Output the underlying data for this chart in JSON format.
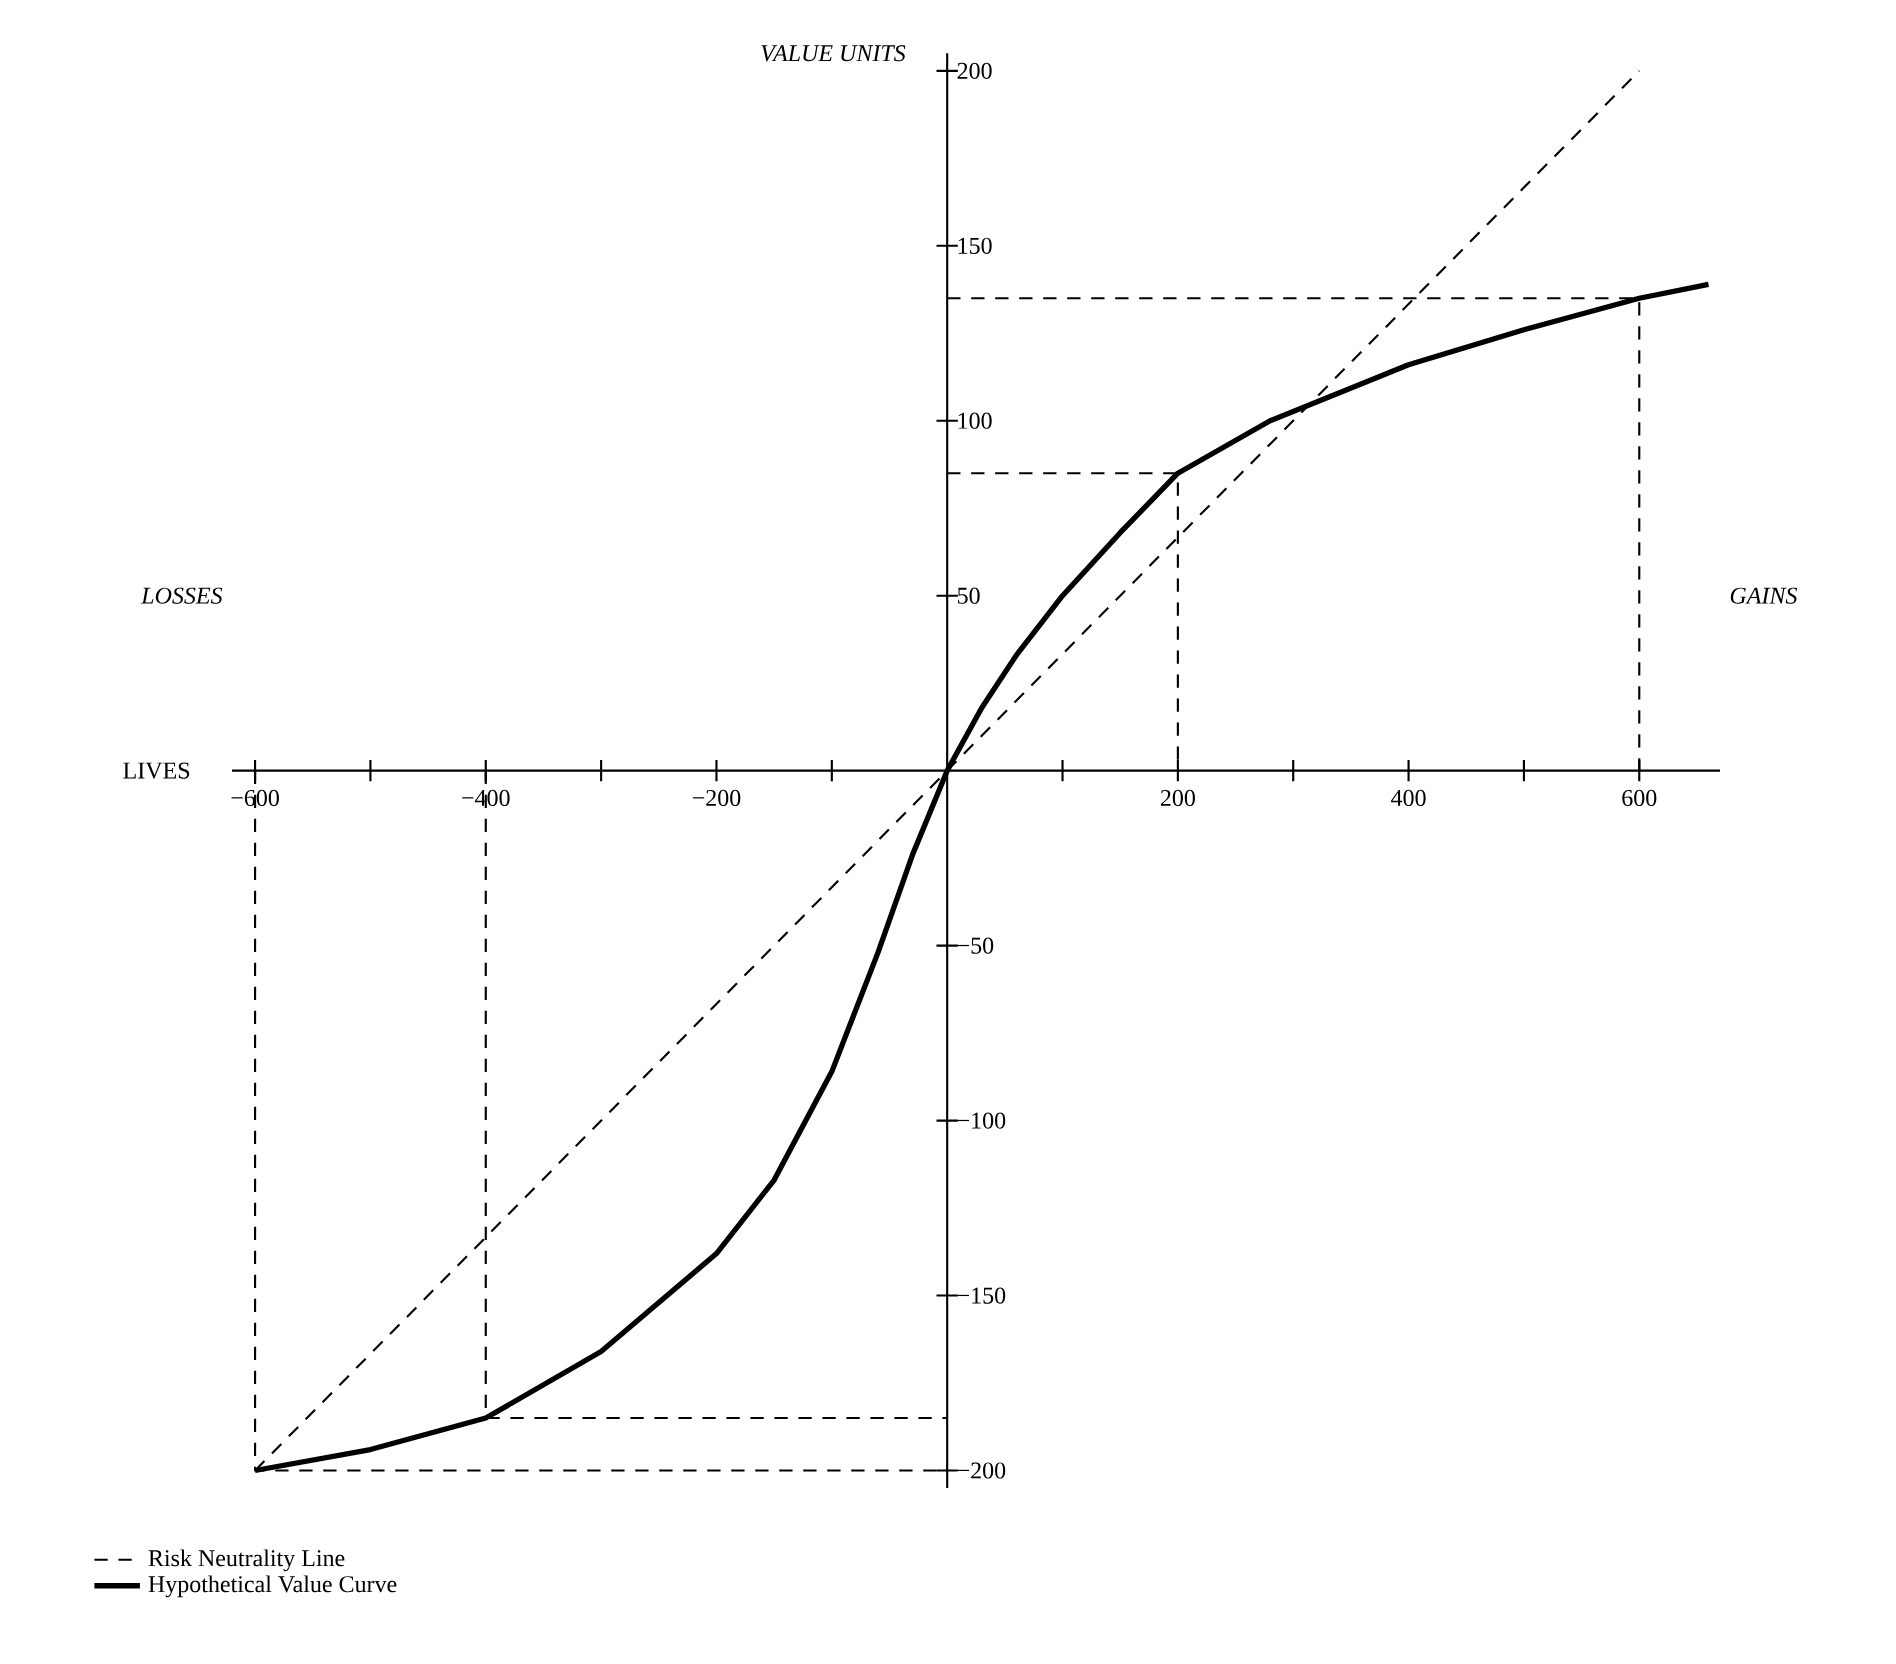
{
  "chart_data": {
    "type": "line",
    "xlabel": "LIVES",
    "ylabel": "VALUE UNITS",
    "annotations": [
      "LOSSES",
      "GAINS"
    ],
    "xlim": [
      -620,
      670
    ],
    "ylim": [
      -205,
      205
    ],
    "xticks": [
      {
        "value": -600,
        "label": "−600"
      },
      {
        "value": -500,
        "label": null
      },
      {
        "value": -400,
        "label": "−400"
      },
      {
        "value": -300,
        "label": null
      },
      {
        "value": -200,
        "label": "−200"
      },
      {
        "value": -100,
        "label": null
      },
      {
        "value": 100,
        "label": null
      },
      200,
      {
        "value": 300,
        "label": null
      },
      400,
      {
        "value": 500,
        "label": null
      },
      600
    ],
    "yticks": [
      {
        "value": -200,
        "label": "−200"
      },
      {
        "value": -150,
        "label": "−150"
      },
      {
        "value": -100,
        "label": "−100"
      },
      {
        "value": -50,
        "label": "−50"
      },
      50,
      100,
      150,
      200
    ],
    "legend": "bottom left",
    "marker": "none",
    "series": [
      {
        "name": "Risk Neutrality Line",
        "line_style": "dashed",
        "color": "#000000",
        "x": [
          -600,
          600
        ],
        "values": [
          -200,
          200
        ]
      },
      {
        "name": "Hypothetical Value Curve",
        "line_style": "solid",
        "color": "#000000",
        "x": [
          -600,
          -500,
          -400,
          -300,
          -200,
          -150,
          -100,
          -60,
          -30,
          0,
          30,
          60,
          100,
          150,
          200,
          280,
          400,
          500,
          600,
          660
        ],
        "values": [
          -200,
          -194,
          -185,
          -166,
          -138,
          -117,
          -86,
          -52,
          -24,
          0,
          18,
          33,
          50,
          68,
          85,
          100,
          116,
          126,
          135,
          139
        ]
      },
      {
        "line_style": "dashed",
        "color": "#000000",
        "x": [
          0,
          600,
          600
        ],
        "values": [
          135,
          135,
          0
        ]
      },
      {
        "line_style": "dashed",
        "color": "#000000",
        "x": [
          0,
          200,
          200
        ],
        "values": [
          85,
          85,
          0
        ]
      },
      {
        "line_style": "dashed",
        "color": "#000000",
        "x": [
          -400,
          -400,
          0
        ],
        "values": [
          0,
          -185,
          -185
        ]
      },
      {
        "line_style": "dashed",
        "color": "#000000",
        "x": [
          -600,
          -600,
          0
        ],
        "values": [
          0,
          -200,
          -200
        ]
      }
    ]
  }
}
